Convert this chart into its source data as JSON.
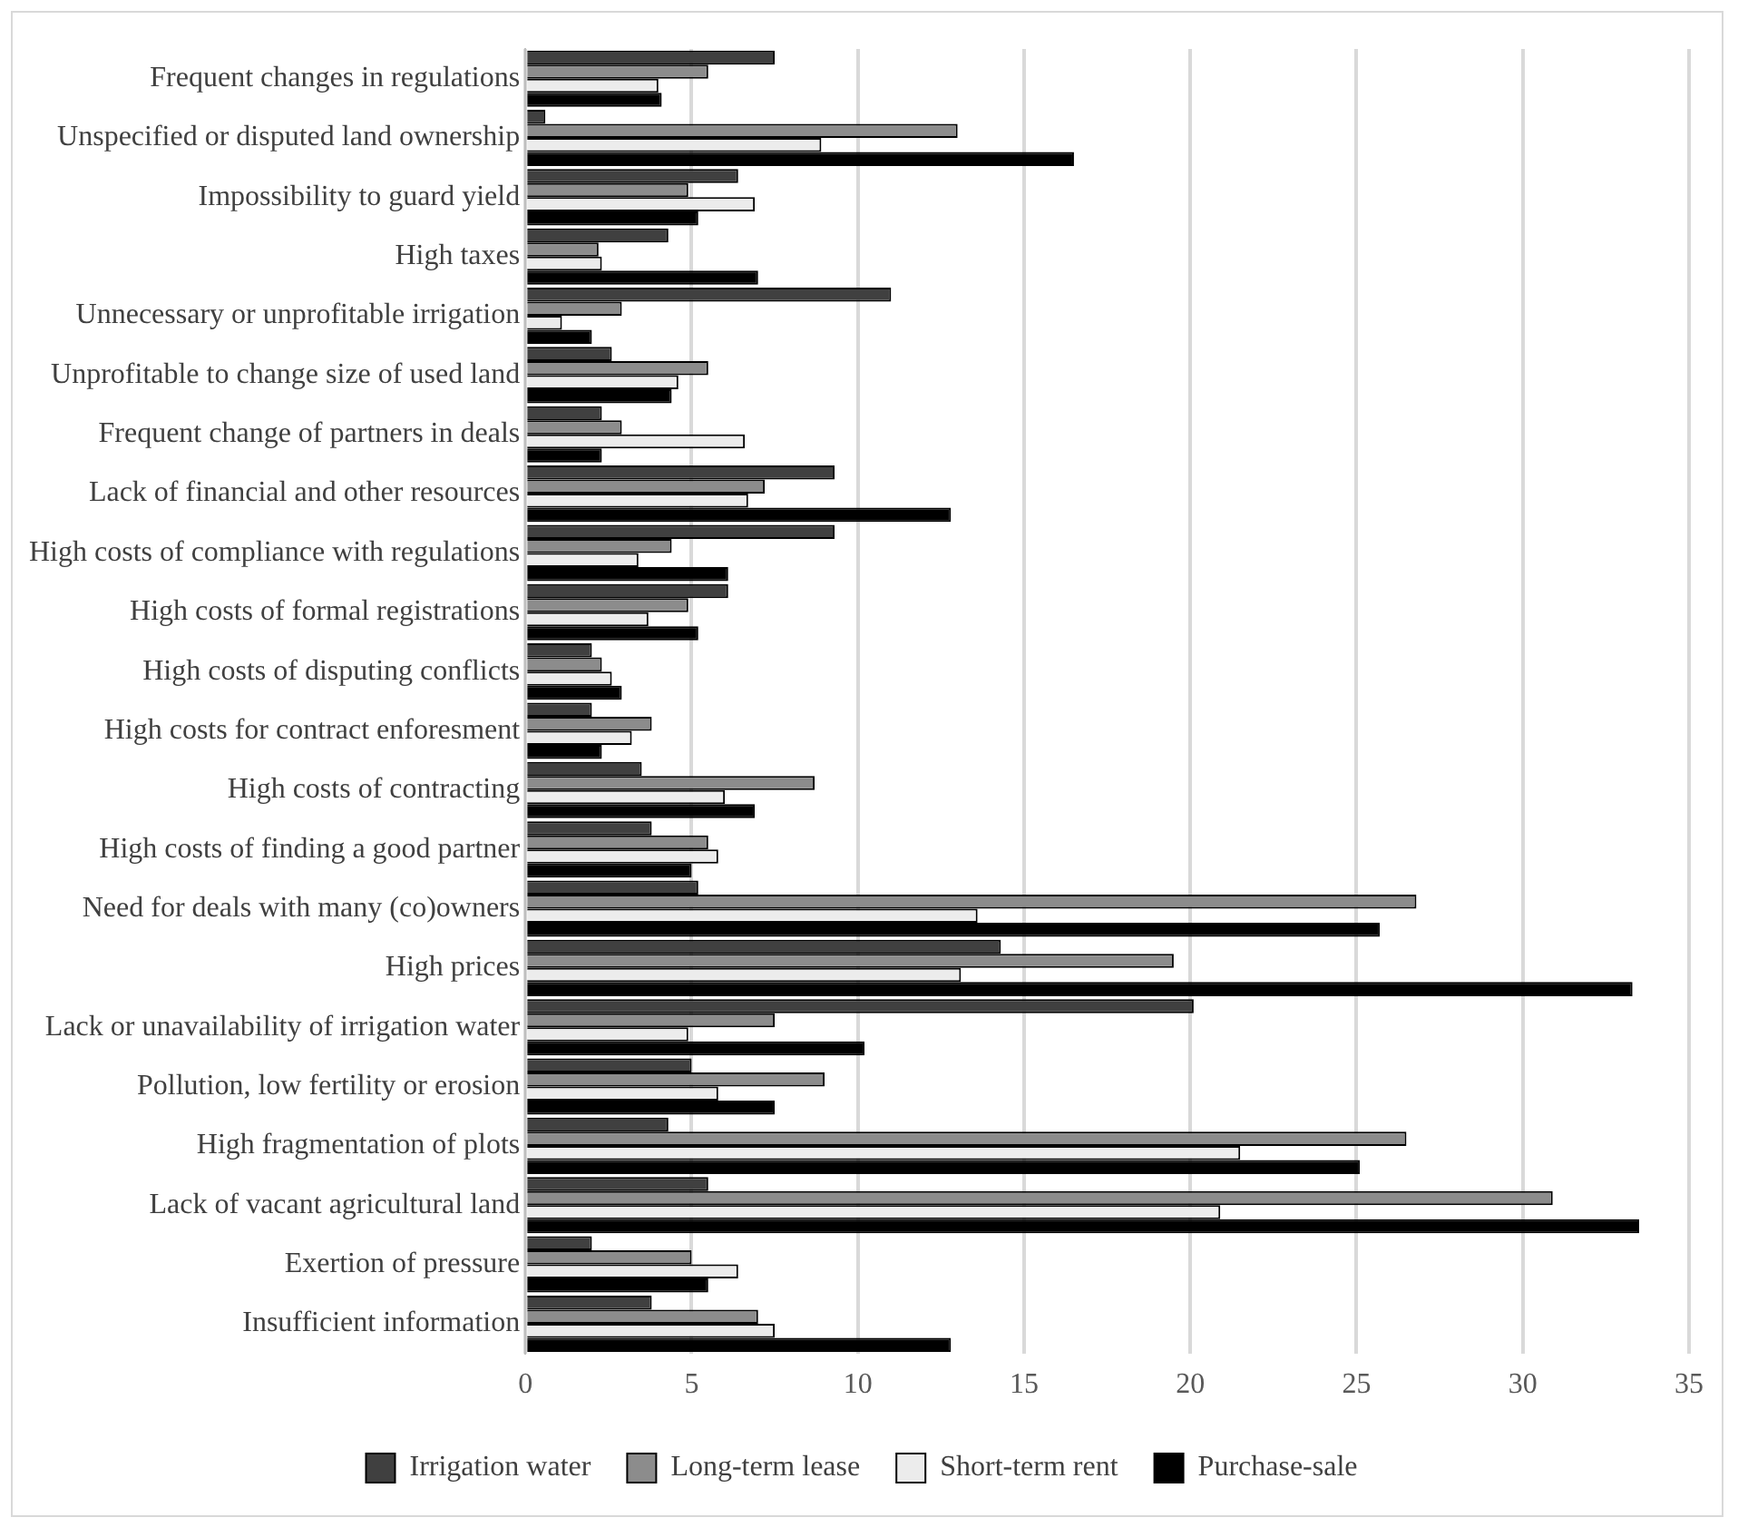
{
  "chart_data": {
    "type": "bar",
    "orientation": "horizontal",
    "categories": [
      "Frequent changes in regulations",
      "Unspecified or disputed land ownership",
      "Impossibility to guard yield",
      "High taxes",
      "Unnecessary or unprofitable irrigation",
      "Unprofitable to change size of used land",
      "Frequent change of partners in deals",
      "Lack of financial and other resources",
      "High costs of compliance with regulations",
      "High costs of formal registrations",
      "High costs of disputing conflicts",
      "High costs for contract enforesment",
      "High costs of contracting",
      "High costs of finding a good partner",
      "Need for deals with many (co)owners",
      "High prices",
      "Lack or unavailability of irrigation water",
      "Pollution, low fertility or erosion",
      "High fragmentation of plots",
      "Lack of vacant agricultural land",
      "Exertion of pressure",
      "Insufficient information"
    ],
    "series": [
      {
        "name": "Irrigation water",
        "color": "#404040",
        "values": [
          7.5,
          0.6,
          6.4,
          4.3,
          11.0,
          2.6,
          2.3,
          9.3,
          9.3,
          6.1,
          2.0,
          2.0,
          3.5,
          3.8,
          5.2,
          14.3,
          20.1,
          5.0,
          4.3,
          5.5,
          2.0,
          3.8
        ]
      },
      {
        "name": "Long-term lease",
        "color": "#8c8c8c",
        "values": [
          5.5,
          13.0,
          4.9,
          2.2,
          2.9,
          5.5,
          2.9,
          7.2,
          4.4,
          4.9,
          2.3,
          3.8,
          8.7,
          5.5,
          26.8,
          19.5,
          7.5,
          9.0,
          26.5,
          30.9,
          5.0,
          7.0
        ]
      },
      {
        "name": "Short-term rent",
        "color": "#ececec",
        "values": [
          4.0,
          8.9,
          6.9,
          2.3,
          1.1,
          4.6,
          6.6,
          6.7,
          3.4,
          3.7,
          2.6,
          3.2,
          6.0,
          5.8,
          13.6,
          13.1,
          4.9,
          5.8,
          21.5,
          20.9,
          6.4,
          7.5
        ]
      },
      {
        "name": "Purchase-sale",
        "color": "#000000",
        "values": [
          4.1,
          16.5,
          5.2,
          7.0,
          2.0,
          4.4,
          2.3,
          12.8,
          6.1,
          5.2,
          2.9,
          2.3,
          6.9,
          5.0,
          25.7,
          33.3,
          10.2,
          7.5,
          25.1,
          33.5,
          5.5,
          12.8
        ]
      }
    ],
    "xlim": [
      0,
      35
    ],
    "xticks": [
      0,
      5,
      10,
      15,
      20,
      25,
      30,
      35
    ],
    "grid": "x",
    "legend": "bottom"
  }
}
